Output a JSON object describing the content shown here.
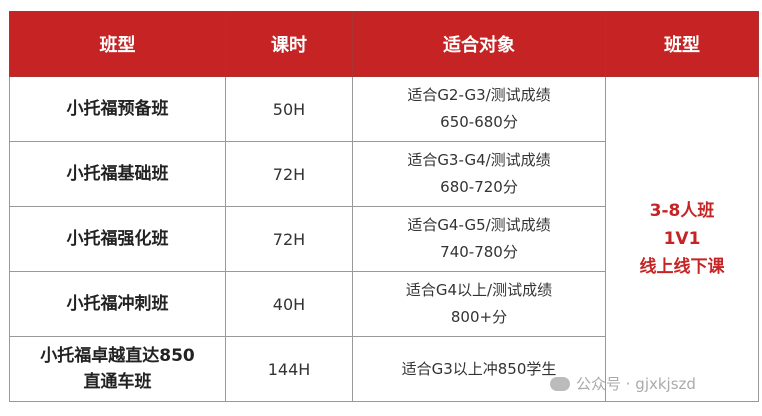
{
  "headers": [
    "班型",
    "课时",
    "适合对象",
    "班型"
  ],
  "rows": [
    {
      "name": "小托福预备班",
      "hours": "50H",
      "target1": "适合G2-G3/测试成绩",
      "target2": "650-680分"
    },
    {
      "name": "小托福基础班",
      "hours": "72H",
      "target1": "适合G3-G4/测试成绩",
      "target2": "680-720分"
    },
    {
      "name": "小托福强化班",
      "hours": "72H",
      "target1": "适合G4-G5/测试成绩",
      "target2": "740-780分"
    },
    {
      "name": "小托福冲刺班",
      "hours": "40H",
      "target1": "适合G4以上/测试成绩",
      "target2": "800+分"
    },
    {
      "name1": "小托福卓越直达850",
      "name2": "直通车班",
      "hours": "144H",
      "target1": "适合G3以上冲850学生"
    }
  ],
  "class_type": [
    "3-8人班",
    "1V1",
    "线上线下课"
  ],
  "watermark": "公众号 · gjxkjszd",
  "colors": {
    "header": "#c62424",
    "accent": "#c62424"
  }
}
